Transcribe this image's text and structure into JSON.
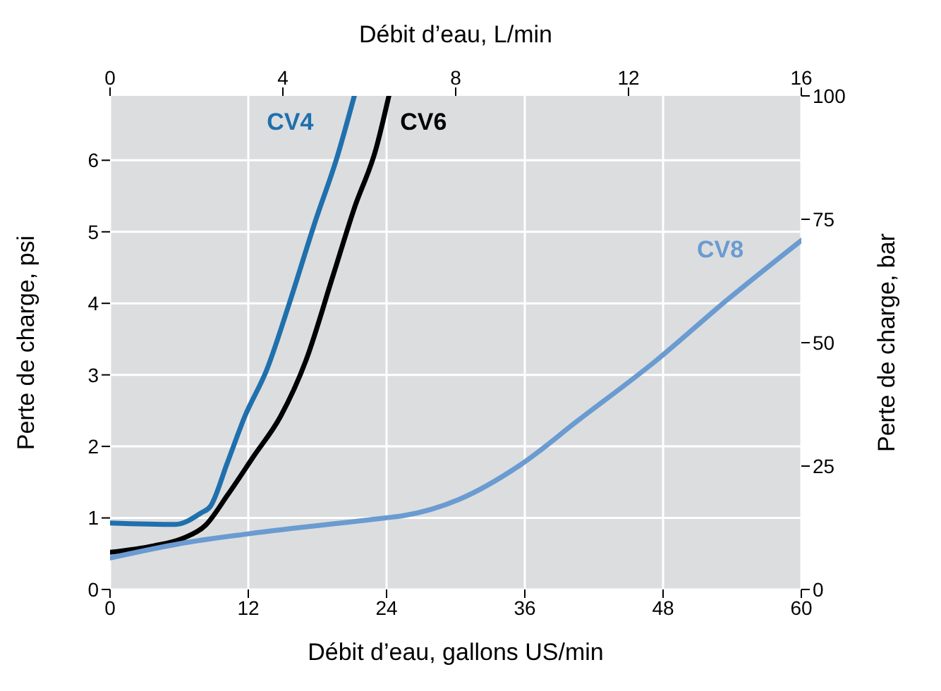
{
  "chart_data": {
    "type": "line",
    "xlabel": "Débit d’eau, gallons US/min",
    "x2label": "Débit d’eau, L/min",
    "ylabel": "Perte de charge, psi",
    "y2label": "Perte de charge, bar",
    "xlim": [
      0,
      60
    ],
    "xticks": [
      0,
      12,
      24,
      36,
      48,
      60
    ],
    "x2lim": [
      0,
      16
    ],
    "x2ticks": [
      0,
      4,
      8,
      12,
      16
    ],
    "ylim": [
      0,
      6.9
    ],
    "yticks": [
      0,
      1,
      2,
      3,
      4,
      5,
      6
    ],
    "y2lim": [
      0,
      100
    ],
    "y2ticks": [
      0,
      25,
      50,
      75,
      100
    ],
    "grid": true,
    "legend": false,
    "marker": "none",
    "line_style": "solid",
    "series": [
      {
        "name": "CV4",
        "color": "#1f70ad",
        "x": [
          0,
          5.7,
          7.9,
          8.7,
          10.2,
          11.7,
          13.6,
          15.5,
          17.8,
          19.7,
          21.2
        ],
        "values": [
          0.93,
          0.91,
          1.07,
          1.16,
          1.78,
          2.42,
          3.07,
          3.97,
          5.14,
          6.04,
          6.9
        ]
      },
      {
        "name": "CV6",
        "color": "#000000",
        "x": [
          0,
          3.8,
          6.4,
          8.3,
          10.2,
          12.5,
          14.8,
          17.0,
          19.3,
          21.2,
          23.1,
          24.2
        ],
        "values": [
          0.52,
          0.61,
          0.72,
          0.9,
          1.32,
          1.87,
          2.42,
          3.2,
          4.36,
          5.33,
          6.17,
          6.9
        ]
      },
      {
        "name": "CV8",
        "color": "#6a9bd1",
        "x": [
          0,
          6.4,
          12.1,
          23.9,
          25.4,
          30.3,
          35.6,
          40.6,
          47.4,
          53.5,
          60
        ],
        "values": [
          0.44,
          0.65,
          0.78,
          1.0,
          1.03,
          1.26,
          1.74,
          2.36,
          3.2,
          4.04,
          4.88
        ]
      }
    ]
  }
}
